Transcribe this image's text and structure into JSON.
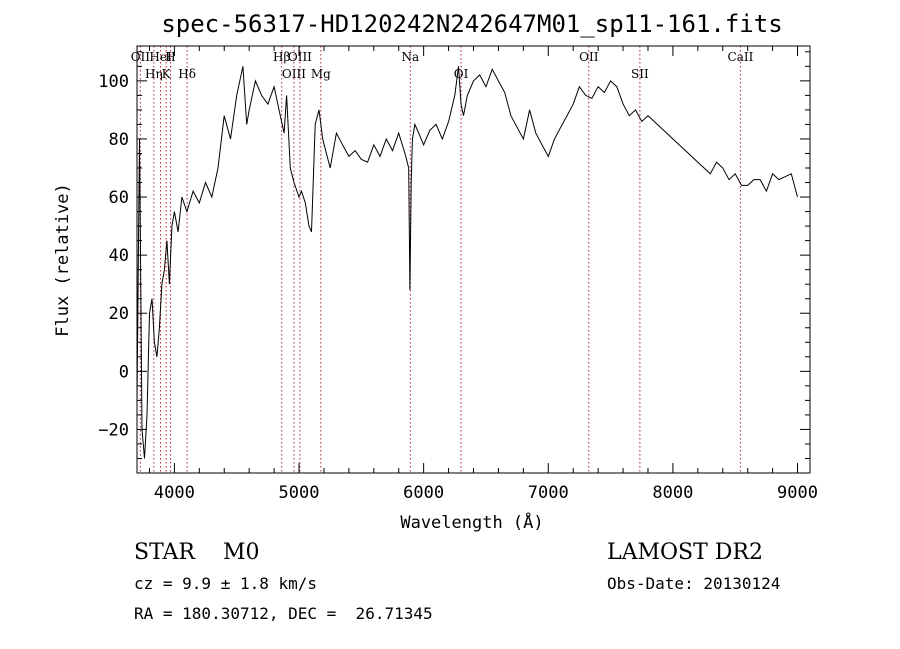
{
  "chart_data": {
    "type": "line",
    "title": "spec-56317-HD120242N242647M01_sp11-161.fits",
    "xlabel": "Wavelength (Å)",
    "ylabel": "Flux (relative)",
    "xlim": [
      3700,
      9100
    ],
    "ylim": [
      -35,
      112
    ],
    "xticks": [
      4000,
      5000,
      6000,
      7000,
      8000,
      9000
    ],
    "yticks": [
      -20,
      0,
      20,
      40,
      60,
      80,
      100
    ],
    "grid": false,
    "legend": "none",
    "series": [
      {
        "line_color": "#000000",
        "x": [
          3700,
          3720,
          3740,
          3760,
          3780,
          3800,
          3820,
          3840,
          3860,
          3880,
          3900,
          3920,
          3940,
          3960,
          3980,
          4000,
          4030,
          4060,
          4100,
          4150,
          4200,
          4250,
          4300,
          4350,
          4400,
          4450,
          4500,
          4550,
          4580,
          4600,
          4650,
          4700,
          4750,
          4800,
          4850,
          4880,
          4900,
          4930,
          4960,
          5000,
          5020,
          5050,
          5080,
          5100,
          5130,
          5160,
          5190,
          5220,
          5250,
          5300,
          5350,
          5400,
          5450,
          5500,
          5550,
          5600,
          5650,
          5700,
          5750,
          5800,
          5850,
          5880,
          5890,
          5900,
          5910,
          5930,
          5960,
          6000,
          6050,
          6100,
          6150,
          6200,
          6250,
          6280,
          6300,
          6320,
          6350,
          6400,
          6450,
          6500,
          6550,
          6600,
          6650,
          6700,
          6750,
          6800,
          6850,
          6900,
          6950,
          7000,
          7050,
          7100,
          7150,
          7200,
          7250,
          7300,
          7350,
          7400,
          7450,
          7500,
          7550,
          7600,
          7650,
          7700,
          7750,
          7800,
          7850,
          7900,
          7950,
          8000,
          8050,
          8100,
          8150,
          8200,
          8250,
          8300,
          8350,
          8400,
          8450,
          8500,
          8550,
          8600,
          8650,
          8700,
          8750,
          8800,
          8850,
          8900,
          8950,
          9000
        ],
        "y": [
          -10,
          80,
          -20,
          -30,
          -15,
          20,
          25,
          10,
          5,
          15,
          30,
          35,
          45,
          30,
          50,
          55,
          48,
          60,
          55,
          62,
          58,
          65,
          60,
          70,
          88,
          80,
          95,
          105,
          85,
          90,
          100,
          95,
          92,
          98,
          88,
          82,
          95,
          70,
          65,
          60,
          62,
          58,
          50,
          48,
          85,
          90,
          80,
          75,
          70,
          82,
          78,
          74,
          76,
          73,
          72,
          78,
          74,
          80,
          76,
          82,
          75,
          70,
          28,
          65,
          80,
          85,
          82,
          78,
          83,
          85,
          80,
          86,
          95,
          105,
          92,
          88,
          95,
          100,
          102,
          98,
          104,
          100,
          96,
          88,
          84,
          80,
          90,
          82,
          78,
          74,
          80,
          84,
          88,
          92,
          98,
          95,
          94,
          98,
          96,
          100,
          98,
          92,
          88,
          90,
          86,
          88,
          86,
          84,
          82,
          80,
          78,
          76,
          74,
          72,
          70,
          68,
          72,
          70,
          66,
          68,
          64,
          64,
          66,
          66,
          62,
          68,
          66,
          67,
          68,
          60
        ]
      }
    ],
    "annotations": [
      {
        "label": "OII",
        "x": 3727
      },
      {
        "label": "Hη",
        "x": 3835
      },
      {
        "label": "HeI",
        "x": 3889
      },
      {
        "label": "K",
        "x": 3934
      },
      {
        "label": "H",
        "x": 3969
      },
      {
        "label": "Hδ",
        "x": 4102
      },
      {
        "label": "Hβ",
        "x": 4861
      },
      {
        "label": "OIII",
        "x": 4959
      },
      {
        "label": "OIII",
        "x": 5007
      },
      {
        "label": "Mg",
        "x": 5175
      },
      {
        "label": "Na",
        "x": 5893
      },
      {
        "label": "OI",
        "x": 6300
      },
      {
        "label": "OII",
        "x": 7325
      },
      {
        "label": "SII",
        "x": 7735
      },
      {
        "label": "CaII",
        "x": 8542
      }
    ]
  },
  "info": {
    "class_line": "STAR    M0",
    "survey": "LAMOST DR2",
    "cz_line": "cz = 9.9 ± 1.8 km/s",
    "obs_date": "Obs-Date: 20130124",
    "radec": "RA = 180.30712, DEC =  26.71345"
  }
}
